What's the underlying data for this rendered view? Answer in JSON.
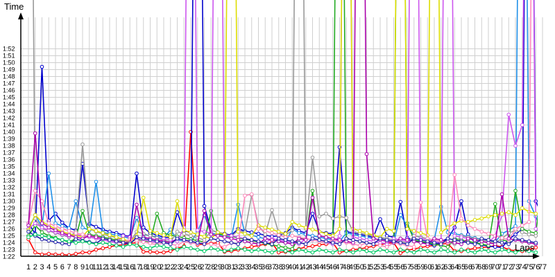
{
  "chart_data": {
    "type": "line",
    "xlabel": "Laps",
    "ylabel": "Time",
    "grid": true,
    "x_categories": [
      "1",
      "2",
      "3",
      "4",
      "5",
      "6",
      "7",
      "8",
      "9",
      "10",
      "11",
      "12",
      "13",
      "14",
      "15",
      "16",
      "17",
      "18",
      "19",
      "20",
      "21",
      "22",
      "23",
      "24",
      "25",
      "26",
      "27",
      "28",
      "29",
      "30",
      "31",
      "32",
      "33",
      "34",
      "35",
      "36",
      "37",
      "38",
      "39",
      "40",
      "41",
      "42",
      "43",
      "44",
      "45",
      "46",
      "47",
      "48",
      "49",
      "50",
      "51",
      "52",
      "53",
      "54",
      "55",
      "56",
      "57",
      "58",
      "59",
      "60",
      "61",
      "62",
      "63",
      "64",
      "65",
      "66",
      "67",
      "68",
      "69",
      "70",
      "71",
      "72",
      "73",
      "74",
      "75",
      "76",
      "77"
    ],
    "y_ticks": [
      "1:22",
      "1:23",
      "1:24",
      "1:25",
      "1:26",
      "1:27",
      "1:28",
      "1:29",
      "1:30",
      "1:31",
      "1:32",
      "1:33",
      "1:34",
      "1:35",
      "1:36",
      "1:37",
      "1:38",
      "1:39",
      "1:40",
      "1:41",
      "1:42",
      "1:43",
      "1:44",
      "1:45",
      "1:46",
      "1:47",
      "1:48",
      "1:49",
      "1:50",
      "1:51",
      "1:52"
    ],
    "y_tick_seconds": [
      82,
      83,
      84,
      85,
      86,
      87,
      88,
      89,
      90,
      91,
      92,
      93,
      94,
      95,
      96,
      97,
      98,
      99,
      100,
      101,
      102,
      103,
      104,
      105,
      106,
      107,
      108,
      109,
      110,
      111,
      112
    ],
    "ylim_seconds": [
      81,
      115
    ],
    "series": [
      {
        "color": "#ff0000",
        "values": [
          84.5,
          82.6,
          82.3,
          82.4,
          82.3,
          82.3,
          82.2,
          82.4,
          82.6,
          82.6,
          83.0,
          83.2,
          83.4,
          83.6,
          83.7,
          83.9,
          84.0,
          82.7,
          82.7,
          82.6,
          82.6,
          82.8,
          83.2,
          83.5,
          100.0,
          83.7,
          83.8,
          83.9,
          84.0,
          82.7,
          82.8,
          83.0,
          83.2,
          83.4,
          83.6,
          83.8,
          84.0,
          82.6,
          82.7,
          82.9,
          83.1,
          83.4,
          83.5,
          83.7,
          83.8,
          84.0,
          82.6,
          82.8,
          83.0,
          83.1,
          83.3,
          83.5,
          83.7,
          83.9,
          84.0,
          82.5,
          82.9,
          83.1,
          83.3,
          83.5,
          83.6,
          83.8,
          83.9,
          82.8,
          82.8,
          83.0,
          83.2,
          83.3,
          83.4,
          83.6,
          83.4,
          83.0,
          82.8,
          82.8,
          83.0,
          83.3,
          83.5
        ]
      },
      {
        "color": "#0000cc",
        "values": [
          86.8,
          85.3,
          109.4,
          87.2,
          88.2,
          86.9,
          86.1,
          85.8,
          95.4,
          86.7,
          86.3,
          85.9,
          85.6,
          85.4,
          85.1,
          84.9,
          94.0,
          86.2,
          85.4,
          85.1,
          84.8,
          84.7,
          88.4,
          85.7,
          85.5,
          200,
          89.3,
          85.8,
          85.5,
          85.3,
          85.1,
          86.0,
          85.7,
          85.5,
          85.3,
          85.1,
          84.9,
          85.0,
          85.4,
          86.2,
          85.7,
          85.4,
          88.2,
          85.6,
          85.4,
          85.3,
          97.8,
          85.6,
          85.4,
          85.2,
          85.0,
          84.8,
          87.4,
          85.0,
          84.8,
          89.9,
          84.7,
          84.3,
          84.1,
          83.9,
          83.6,
          84.2,
          84.6,
          86.2,
          90.0,
          85.2,
          84.0,
          83.7,
          83.5,
          83.4,
          83.3,
          84.5,
          85.2,
          86.0,
          200,
          90.0,
          87.8
        ]
      },
      {
        "color": "#1e8fe8",
        "values": [
          86.0,
          88.0,
          86.3,
          94.0,
          86.8,
          86.4,
          86.1,
          90.0,
          86.2,
          85.8,
          92.8,
          85.5,
          85.3,
          85.1,
          84.9,
          84.6,
          87.6,
          85.2,
          85.0,
          84.8,
          84.6,
          85.9,
          84.4,
          84.2,
          84.0,
          85.6,
          88.0,
          85.4,
          85.2,
          85.0,
          84.8,
          89.5,
          85.3,
          85.1,
          84.8,
          84.6,
          84.4,
          84.2,
          84.0,
          86.0,
          85.4,
          85.2,
          85.0,
          84.8,
          84.6,
          84.4,
          84.2,
          85.4,
          85.2,
          85.0,
          84.8,
          84.6,
          84.4,
          84.2,
          84.0,
          88.0,
          86.4,
          85.0,
          84.8,
          84.6,
          84.4,
          89.2,
          85.5,
          85.3,
          85.1,
          84.9,
          84.7,
          84.5,
          84.3,
          84.1,
          85.3,
          85.8,
          86.4,
          200,
          90.0,
          87.8,
          85.2
        ]
      },
      {
        "color": "#22aa22",
        "values": [
          85.0,
          86.5,
          85.5,
          85.0,
          84.7,
          84.4,
          84.1,
          84.6,
          88.6,
          85.2,
          85.0,
          84.8,
          84.6,
          84.4,
          84.2,
          84.0,
          84.5,
          84.3,
          84.1,
          88.2,
          85.4,
          85.1,
          84.9,
          84.7,
          84.5,
          84.3,
          84.1,
          88.6,
          85.3,
          85.1,
          84.9,
          84.7,
          84.5,
          84.3,
          84.1,
          83.9,
          83.7,
          83.5,
          83.3,
          83.1,
          84.8,
          84.5,
          91.5,
          84.2,
          84.0,
          83.8,
          200,
          84.6,
          84.4,
          84.2,
          84.0,
          83.8,
          83.6,
          83.4,
          84.0,
          200,
          86.8,
          84.4,
          84.2,
          84.0,
          83.8,
          83.6,
          83.4,
          84.6,
          84.4,
          84.2,
          84.0,
          83.8,
          83.6,
          89.6,
          84.4,
          84.2,
          91.5,
          86.0,
          85.6,
          85.4,
          92.8
        ]
      },
      {
        "color": "#999999",
        "values": [
          200,
          87.5,
          86.0,
          85.7,
          85.4,
          85.1,
          84.8,
          85.6,
          98.2,
          86.0,
          85.6,
          85.3,
          85.0,
          84.7,
          84.4,
          84.1,
          85.6,
          85.3,
          85.0,
          84.7,
          84.4,
          84.1,
          85.6,
          85.3,
          85.0,
          84.7,
          84.4,
          85.8,
          85.5,
          85.2,
          84.9,
          85.8,
          85.5,
          90.9,
          86.5,
          85.2,
          88.7,
          85.4,
          85.1,
          85.8,
          200,
          86.0,
          96.3,
          87.8,
          88.2,
          87.5,
          87.8,
          87.6,
          85.6,
          85.4,
          85.2,
          85.0,
          84.8,
          84.6,
          84.4,
          84.2,
          84.0,
          85.0,
          84.8,
          84.6,
          84.4,
          84.2,
          84.0,
          83.8,
          85.0,
          84.8,
          84.6,
          84.4,
          84.2,
          84.0,
          84.6,
          85.4,
          85.8,
          85.5,
          85.2,
          85.0,
          84.8
        ]
      },
      {
        "color": "#cc55ee",
        "values": [
          86.0,
          86.8,
          86.2,
          85.8,
          85.5,
          85.2,
          84.9,
          85.2,
          85.0,
          84.8,
          84.6,
          84.4,
          84.2,
          84.0,
          85.0,
          84.8,
          84.6,
          84.4,
          84.2,
          84.0,
          84.6,
          84.4,
          84.2,
          86.2,
          200,
          85.8,
          85.6,
          85.4,
          200,
          85.2,
          85.0,
          84.8,
          84.6,
          84.4,
          84.2,
          84.0,
          84.6,
          84.4,
          84.2,
          84.0,
          83.8,
          84.6,
          84.4,
          84.2,
          84.0,
          83.8,
          85.0,
          200,
          84.8,
          84.6,
          84.4,
          84.2,
          84.0,
          83.8,
          84.6,
          84.4,
          84.2,
          200,
          84.6,
          84.4,
          84.2,
          84.0,
          200,
          85.0,
          84.8,
          84.6,
          84.4,
          84.2,
          84.0,
          85.0,
          88.0,
          102.5,
          98.0,
          101.0,
          200,
          86.0,
          85.0
        ]
      },
      {
        "color": "#dddd00",
        "values": [
          85.8,
          88.0,
          87.0,
          86.5,
          86.0,
          85.6,
          85.3,
          85.0,
          84.9,
          86.0,
          85.7,
          85.4,
          85.1,
          84.8,
          84.5,
          84.2,
          85.0,
          90.5,
          85.7,
          85.4,
          85.1,
          84.8,
          90.0,
          85.8,
          85.5,
          85.2,
          84.9,
          84.6,
          85.5,
          85.2,
          200,
          85.6,
          85.3,
          85.0,
          86.5,
          86.2,
          85.9,
          85.6,
          85.3,
          87.0,
          86.5,
          86.2,
          85.9,
          85.6,
          85.3,
          85.0,
          86.0,
          200,
          86.0,
          85.7,
          85.4,
          85.1,
          84.8,
          86.0,
          85.7,
          200,
          86.0,
          85.7,
          85.4,
          85.1,
          200,
          85.5,
          86.2,
          86.8,
          87.2,
          87.0,
          87.3,
          87.5,
          87.8,
          88.0,
          88.2,
          88.4,
          88.0,
          89.0,
          88.5,
          88.2,
          88.0
        ]
      },
      {
        "color": "#ff88bb",
        "values": [
          86.8,
          91.5,
          90.0,
          86.8,
          86.4,
          86.0,
          85.7,
          85.4,
          85.2,
          85.0,
          84.8,
          84.6,
          84.4,
          84.2,
          84.0,
          84.5,
          84.3,
          84.1,
          83.9,
          83.7,
          84.0,
          83.8,
          83.6,
          84.2,
          84.0,
          83.8,
          84.0,
          83.8,
          83.6,
          83.4,
          84.0,
          83.8,
          90.8,
          91.0,
          86.0,
          85.7,
          85.4,
          85.1,
          84.8,
          85.0,
          84.8,
          84.6,
          84.4,
          84.2,
          84.0,
          84.4,
          84.2,
          84.0,
          83.8,
          83.6,
          84.0,
          83.8,
          83.6,
          83.4,
          84.0,
          83.8,
          83.6,
          83.4,
          89.8,
          84.6,
          84.4,
          84.2,
          84.0,
          93.8,
          87.5,
          86.5,
          86.0,
          85.6,
          85.3,
          85.0,
          84.7,
          84.4,
          86.0,
          86.5,
          87.0,
          200,
          86.0
        ]
      },
      {
        "color": "#aa00aa",
        "values": [
          86.5,
          99.8,
          86.8,
          86.2,
          85.8,
          85.4,
          85.1,
          84.8,
          84.6,
          85.0,
          84.8,
          84.6,
          84.4,
          84.2,
          84.0,
          84.0,
          89.5,
          84.8,
          84.6,
          84.4,
          84.2,
          84.0,
          84.6,
          84.4,
          84.2,
          84.0,
          88.6,
          85.2,
          85.0,
          84.8,
          84.6,
          84.4,
          84.2,
          84.0,
          83.8,
          84.6,
          84.4,
          84.2,
          84.0,
          83.8,
          84.6,
          84.4,
          90.5,
          85.0,
          84.8,
          84.6,
          84.4,
          84.2,
          84.0,
          200,
          96.8,
          84.6,
          84.4,
          84.2,
          84.0,
          84.6,
          84.4,
          84.2,
          84.0,
          83.8,
          84.6,
          84.4,
          84.2,
          84.0,
          83.8,
          84.6,
          84.4,
          84.2,
          84.0,
          83.8,
          91.0,
          84.6,
          84.4,
          84.2,
          84.0,
          83.8,
          84.6
        ]
      },
      {
        "color": "#2222aa",
        "values": [
          85.6,
          85.0,
          84.5,
          84.3,
          84.1,
          83.9,
          83.8,
          84.5,
          84.3,
          84.1,
          83.9,
          84.6,
          84.4,
          84.2,
          84.0,
          83.8,
          84.8,
          84.6,
          84.4,
          84.2,
          84.0,
          83.8,
          84.6,
          84.4,
          84.2,
          84.0,
          83.8,
          84.6,
          84.4,
          84.2,
          84.0,
          83.8,
          84.6,
          84.4,
          84.2,
          84.0,
          83.8,
          84.6,
          84.4,
          84.2,
          84.0,
          83.8,
          84.6,
          84.4,
          84.2,
          84.0,
          83.8,
          84.6,
          84.4,
          84.2,
          84.0,
          83.8,
          84.6,
          84.4,
          84.2,
          84.0,
          83.8,
          84.6,
          84.4,
          84.2,
          84.0,
          83.8,
          84.6,
          84.4,
          84.2,
          84.0,
          83.8,
          84.6,
          84.4,
          84.2,
          84.0,
          83.8,
          84.6,
          84.4,
          84.2,
          84.0,
          83.8
        ]
      },
      {
        "color": "#00cc66",
        "values": [
          84.8,
          85.2,
          85.0,
          84.8,
          84.6,
          84.4,
          84.2,
          84.0,
          84.2,
          84.0,
          83.8,
          84.0,
          83.8,
          83.6,
          83.4,
          83.8,
          83.6,
          83.4,
          83.2,
          83.6,
          83.4,
          83.2,
          83.0,
          83.4,
          83.2,
          83.0,
          82.8,
          83.2,
          83.0,
          82.8,
          83.0,
          83.2,
          83.0,
          82.8,
          83.0,
          82.8,
          82.6,
          83.0,
          82.8,
          82.6,
          83.0,
          82.8,
          82.6,
          83.0,
          82.8,
          82.6,
          83.0,
          82.8,
          82.6,
          83.0,
          82.8,
          82.6,
          83.0,
          82.8,
          82.6,
          83.0,
          82.8,
          82.6,
          83.0,
          82.8,
          82.6,
          83.0,
          82.8,
          82.6,
          83.0,
          82.8,
          82.6,
          83.0,
          82.8,
          82.6,
          83.0,
          82.8,
          82.6,
          83.0,
          82.8,
          82.6,
          83.0
        ]
      }
    ]
  }
}
